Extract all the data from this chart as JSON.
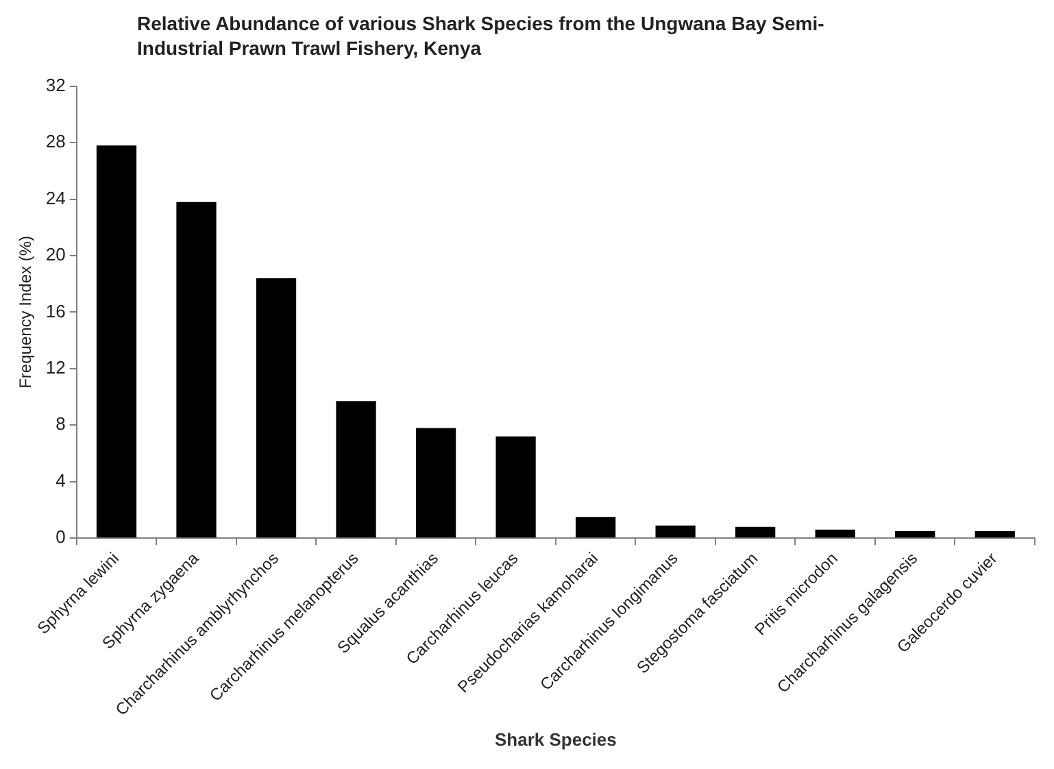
{
  "chart_data": {
    "type": "bar",
    "title": "Relative Abundance of various Shark Species from the Ungwana Bay Semi-Industrial Prawn Trawl Fishery, Kenya",
    "xlabel": "Shark Species",
    "ylabel": "Frequency Index (%)",
    "categories": [
      "Sphyrna lewini",
      "Sphyrna zygaena",
      "Charcharhinus amblyrhynchos",
      "Carcharhinus melanopterus",
      "Squalus acanthias",
      "Carcharhinus leucas",
      "Pseudocharias kamoharai",
      "Carcharhinus longimanus",
      "Stegostoma fasciatum",
      "Pritis microdon",
      "Charcharhinus galagensis",
      "Galeocerdo cuvier"
    ],
    "values": [
      27.8,
      23.8,
      18.4,
      9.7,
      7.8,
      7.2,
      1.5,
      0.9,
      0.8,
      0.6,
      0.5,
      0.5
    ],
    "color": "#000000",
    "ylim": [
      0,
      32
    ],
    "yticks": [
      0,
      4,
      8,
      12,
      16,
      20,
      24,
      28,
      32
    ],
    "grid": false,
    "legend": false
  }
}
